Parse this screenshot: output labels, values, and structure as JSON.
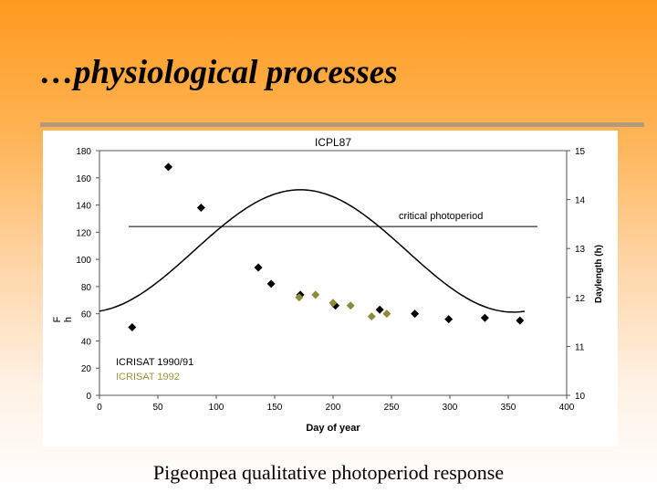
{
  "slide": {
    "title": "…physiological processes",
    "caption": "Pigeonpea qualitative photoperiod response"
  },
  "colors": {
    "series_1990": "#000000",
    "series_1992": "#8b8b3a",
    "legend_1992": "#9a9a3c",
    "curve": "#000000"
  },
  "chart_data": {
    "type": "scatter",
    "title": "ICPL87",
    "xlabel": "Day of year",
    "ylabel_left": "F\nh",
    "ylabel_right": "Daylength (h)",
    "xlim": [
      0,
      400
    ],
    "ylim_left": [
      0,
      180
    ],
    "ylim_right": [
      10,
      15
    ],
    "x_ticks": [
      "0",
      "50",
      "100",
      "150",
      "200",
      "250",
      "300",
      "350",
      "400"
    ],
    "y_ticks_left": [
      "0",
      "20",
      "40",
      "60",
      "80",
      "100",
      "120",
      "140",
      "160",
      "180"
    ],
    "y_ticks_right": [
      "10",
      "11",
      "12",
      "13",
      "14",
      "15"
    ],
    "grid": false,
    "series": [
      {
        "name": "ICRISAT 1990/91",
        "color": "#000000",
        "x": [
          28,
          59,
          87,
          136,
          147,
          172,
          202,
          240,
          270,
          299,
          330,
          360
        ],
        "y": [
          50,
          168,
          138,
          94,
          82,
          74,
          66,
          63,
          60,
          56,
          57,
          55
        ]
      },
      {
        "name": "ICRISAT 1992",
        "color": "#8b8b3a",
        "x": [
          171,
          185,
          200,
          215,
          233,
          246
        ],
        "y": [
          72,
          74,
          68,
          66,
          58,
          60
        ]
      }
    ],
    "daylength_curve": {
      "label": "Daylength",
      "min": 11.7,
      "max": 14.2,
      "peak_day": 172,
      "x_start": 0,
      "x_end": 365
    },
    "critical_photoperiod": {
      "label": "critical photoperiod",
      "value": 13.45,
      "x_start": 25,
      "x_end": 375
    }
  }
}
